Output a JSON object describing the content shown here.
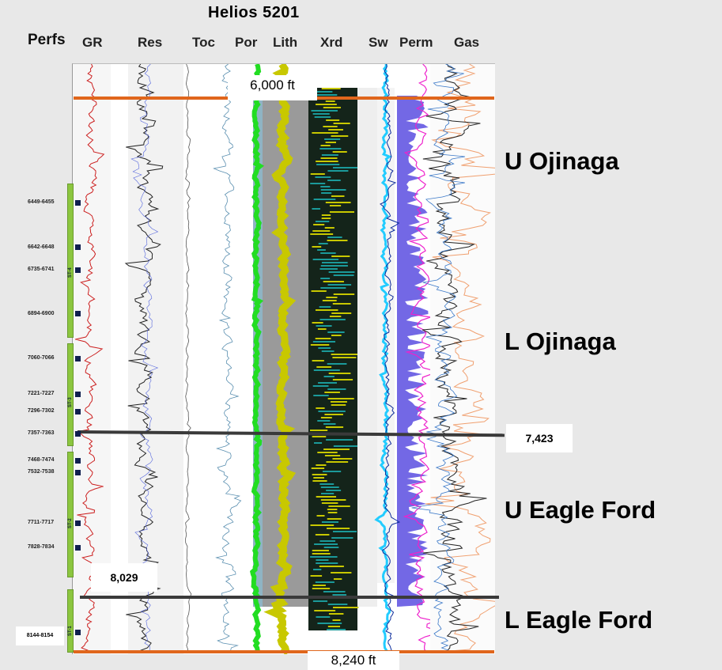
{
  "title": "Helios  5201",
  "perfs_header": "Perfs",
  "tracks": [
    "GR",
    "Res",
    "Toc",
    "Por",
    "Lith",
    "Xrd",
    "Sw",
    "Perm",
    "Gas"
  ],
  "depth_labels": {
    "top": "6,000 ft",
    "bottom": "8,240 ft"
  },
  "markers": {
    "upper": "7,423",
    "lower": "8,029"
  },
  "zones": [
    "U Ojinaga",
    "L Ojinaga",
    "U Eagle Ford",
    "L Eagle Ford"
  ],
  "perforations": [
    "6449-6455",
    "6642-6648",
    "6735-6741",
    "6894-6900",
    "7060-7066",
    "7221-7227",
    "7296-7302",
    "7357-7363",
    "7468-7474",
    "7532-7538",
    "7711-7717",
    "7828-7834",
    "8144-8154"
  ],
  "stages": [
    "ST-4",
    "ST-3",
    "ST-2",
    "ST-1"
  ],
  "colors": {
    "top_bottom_line": "#e0661c",
    "marker_line": "#3a3a3a",
    "stage_bar": "#8cc63f",
    "gr_curve": "#cc1f1f",
    "por_green": "#22dd22",
    "lith_yellow": "#c8c800",
    "lith_gray": "#9a9a9a",
    "xrd_dark": "#14241a",
    "sw_cyan": "#22ccff",
    "perm_magenta": "#ee22cc",
    "gas_orange": "#f0a070"
  }
}
